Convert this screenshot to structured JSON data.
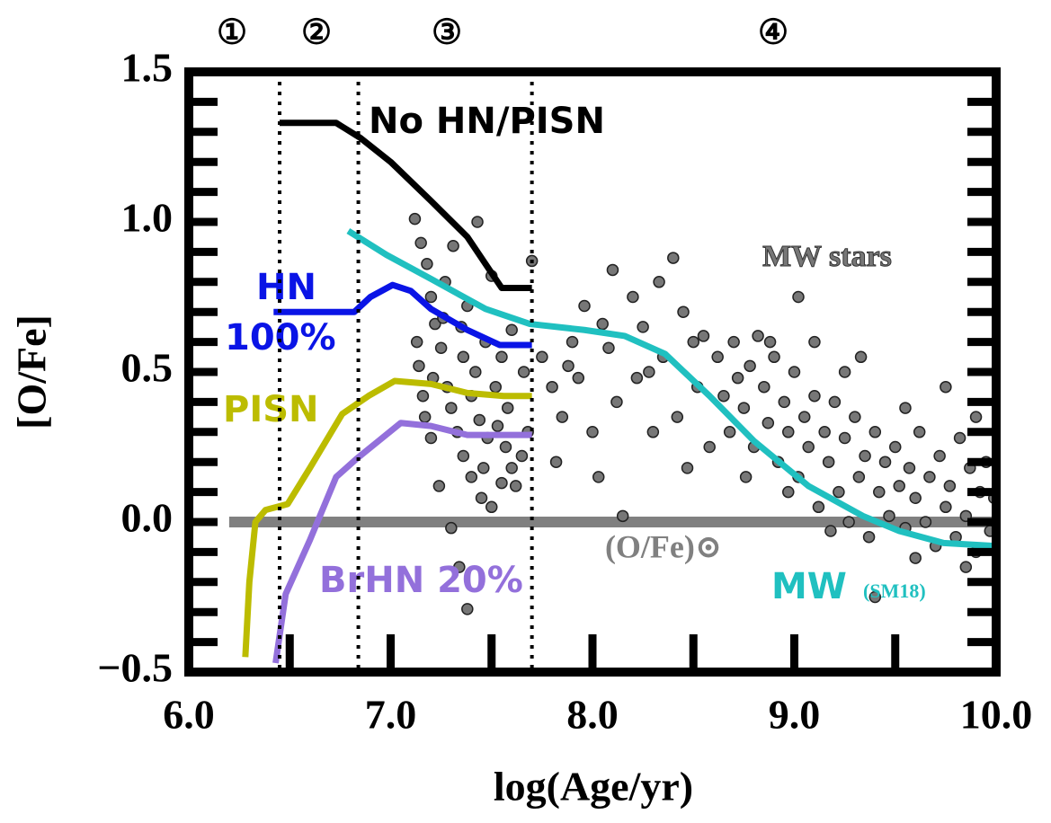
{
  "chart_data": {
    "type": "line",
    "xlabel": "log(Age/yr)",
    "ylabel": "[O/Fe]",
    "xlim": [
      6.0,
      10.0
    ],
    "ylim": [
      -0.5,
      1.5
    ],
    "xticks": [
      {
        "value": 6,
        "label": "6.0"
      },
      {
        "value": 7,
        "label": "7.0"
      },
      {
        "value": 8,
        "label": "8.0"
      },
      {
        "value": 9,
        "label": "9.0"
      },
      {
        "value": 10,
        "label": "10.0"
      }
    ],
    "yticks": [
      {
        "value": -0.5,
        "label": "−0.5"
      },
      {
        "value": 0,
        "label": "0.0"
      },
      0.5,
      {
        "value": 1,
        "label": "1.0"
      },
      1.5
    ],
    "xminor": [
      6.5,
      7.0,
      7.5,
      8.0,
      8.5,
      9.0,
      9.5
    ],
    "yminor": [
      -0.4,
      -0.3,
      -0.2,
      -0.1,
      0.0,
      0.1,
      0.2,
      0.3,
      0.4,
      0.5,
      0.6,
      0.7,
      0.8,
      0.9,
      1.0,
      1.1,
      1.2,
      1.3,
      1.4
    ],
    "phase_labels": [
      "①",
      "②",
      "③",
      "④"
    ],
    "vlines": [
      6.45,
      6.84,
      7.7
    ],
    "solar_line": {
      "value": 0,
      "xmin": 6.2,
      "label": "(O/Fe)⊙",
      "color": "#808080"
    },
    "series": [
      {
        "label_lines": [
          "No HN/PISN"
        ],
        "color": "#000000",
        "x": [
          6.45,
          6.73,
          6.85,
          7.0,
          7.2,
          7.38,
          7.5,
          7.55,
          7.7
        ],
        "values": [
          1.33,
          1.33,
          1.28,
          1.2,
          1.07,
          0.95,
          0.83,
          0.78,
          0.78
        ]
      },
      {
        "label_lines": [
          "HN",
          "100%"
        ],
        "color": "#0a14e6",
        "x": [
          6.42,
          6.82,
          6.9,
          7.01,
          7.1,
          7.2,
          7.38,
          7.54,
          7.7
        ],
        "values": [
          0.7,
          0.7,
          0.75,
          0.79,
          0.77,
          0.71,
          0.64,
          0.59,
          0.59
        ]
      },
      {
        "label_lines": [
          "PISN"
        ],
        "color": "#bcbc00",
        "x": [
          6.28,
          6.3,
          6.33,
          6.38,
          6.49,
          6.6,
          6.76,
          6.89,
          7.02,
          7.2,
          7.38,
          7.56,
          7.7
        ],
        "values": [
          -0.45,
          -0.2,
          0.0,
          0.04,
          0.06,
          0.18,
          0.36,
          0.42,
          0.47,
          0.46,
          0.43,
          0.42,
          0.42
        ]
      },
      {
        "label_lines": [
          "BrHN 20%"
        ],
        "color": "#9370db",
        "x": [
          6.43,
          6.48,
          6.6,
          6.73,
          6.83,
          6.94,
          7.05,
          7.2,
          7.38,
          7.7
        ],
        "values": [
          -0.47,
          -0.24,
          -0.06,
          0.15,
          0.21,
          0.27,
          0.33,
          0.32,
          0.29,
          0.29
        ]
      },
      {
        "label_lines": [
          "MW",
          "(SM18)"
        ],
        "color": "#20c0c0",
        "x": [
          6.79,
          6.98,
          7.2,
          7.47,
          7.69,
          7.96,
          8.16,
          8.36,
          8.58,
          8.8,
          9.07,
          9.34,
          9.52,
          9.74,
          10.0
        ],
        "values": [
          0.97,
          0.89,
          0.81,
          0.71,
          0.66,
          0.64,
          0.62,
          0.56,
          0.42,
          0.27,
          0.12,
          0.02,
          -0.03,
          -0.07,
          -0.08
        ]
      }
    ],
    "scatter": {
      "name": "MW stars",
      "color": "#777777",
      "x": [
        7.12,
        7.15,
        7.18,
        7.2,
        7.22,
        7.25,
        7.14,
        7.28,
        7.3,
        7.17,
        7.33,
        7.36,
        7.4,
        7.24,
        7.45,
        7.5,
        7.55,
        7.6,
        7.65,
        7.68,
        7.42,
        7.47,
        7.52,
        7.58,
        7.35,
        7.38,
        7.27,
        7.31,
        7.43,
        7.5,
        7.57,
        7.62,
        7.3,
        7.34,
        7.38,
        7.2,
        7.16,
        7.13,
        7.44,
        7.48,
        7.66,
        7.7,
        7.55,
        7.26,
        7.21,
        7.4,
        7.36,
        7.46,
        7.53,
        7.6,
        7.75,
        7.8,
        7.82,
        7.85,
        7.9,
        7.93,
        7.96,
        8.0,
        8.05,
        8.08,
        8.1,
        8.12,
        8.15,
        8.2,
        8.22,
        8.25,
        8.3,
        8.33,
        8.35,
        8.4,
        8.42,
        8.45,
        8.5,
        8.52,
        8.55,
        8.58,
        7.88,
        8.03,
        8.28,
        8.47,
        8.62,
        8.65,
        8.68,
        8.7,
        8.72,
        8.75,
        8.78,
        8.8,
        8.82,
        8.85,
        8.87,
        8.9,
        8.92,
        8.95,
        8.97,
        9.0,
        9.02,
        9.05,
        9.07,
        9.1,
        9.12,
        9.15,
        9.17,
        9.2,
        9.22,
        9.25,
        9.27,
        9.3,
        9.32,
        9.35,
        9.37,
        9.4,
        9.42,
        9.45,
        9.47,
        9.5,
        9.52,
        9.55,
        9.57,
        9.6,
        9.62,
        9.65,
        9.67,
        9.7,
        9.72,
        9.75,
        9.77,
        9.8,
        9.82,
        9.85,
        9.87,
        9.9,
        9.92,
        9.95,
        9.97,
        9.99,
        9.1,
        9.02,
        8.88,
        9.25,
        9.55,
        9.75,
        9.9,
        9.6,
        9.85,
        9.4,
        9.33,
        8.97,
        8.76,
        9.18
      ],
      "values": [
        1.01,
        0.93,
        0.86,
        0.75,
        0.66,
        0.58,
        0.52,
        0.45,
        0.38,
        0.35,
        0.3,
        0.22,
        0.15,
        0.12,
        0.08,
        0.05,
        0.13,
        0.18,
        0.22,
        0.3,
        0.5,
        0.6,
        0.45,
        0.38,
        0.65,
        0.72,
        0.8,
        0.92,
        1.0,
        0.82,
        0.25,
        0.12,
        -0.02,
        -0.15,
        -0.29,
        0.28,
        0.42,
        0.6,
        0.34,
        0.28,
        0.5,
        0.87,
        0.55,
        0.68,
        0.48,
        0.42,
        0.55,
        0.18,
        0.32,
        0.64,
        0.55,
        0.45,
        0.2,
        0.35,
        0.6,
        0.48,
        0.72,
        0.3,
        0.66,
        0.58,
        0.84,
        0.4,
        0.02,
        0.75,
        0.48,
        0.65,
        0.3,
        0.8,
        0.55,
        0.88,
        0.35,
        0.7,
        0.6,
        0.45,
        0.62,
        0.25,
        0.52,
        0.15,
        0.5,
        0.18,
        0.55,
        0.42,
        0.3,
        0.6,
        0.48,
        0.38,
        0.52,
        0.25,
        0.62,
        0.45,
        0.33,
        0.55,
        0.2,
        0.4,
        0.3,
        0.5,
        0.15,
        0.35,
        0.25,
        0.42,
        0.05,
        0.3,
        0.2,
        0.4,
        0.1,
        0.28,
        0.0,
        0.35,
        0.15,
        0.22,
        -0.05,
        0.3,
        0.1,
        0.2,
        0.02,
        0.25,
        0.12,
        -0.02,
        0.18,
        0.08,
        0.3,
        0.0,
        0.15,
        -0.08,
        0.22,
        0.05,
        0.12,
        -0.05,
        0.28,
        0.02,
        0.18,
        -0.1,
        0.1,
        0.2,
        -0.03,
        0.08,
        0.6,
        0.75,
        0.6,
        0.5,
        0.38,
        0.45,
        0.35,
        -0.12,
        -0.15,
        -0.25,
        0.55,
        0.1,
        0.15,
        -0.03
      ]
    }
  }
}
